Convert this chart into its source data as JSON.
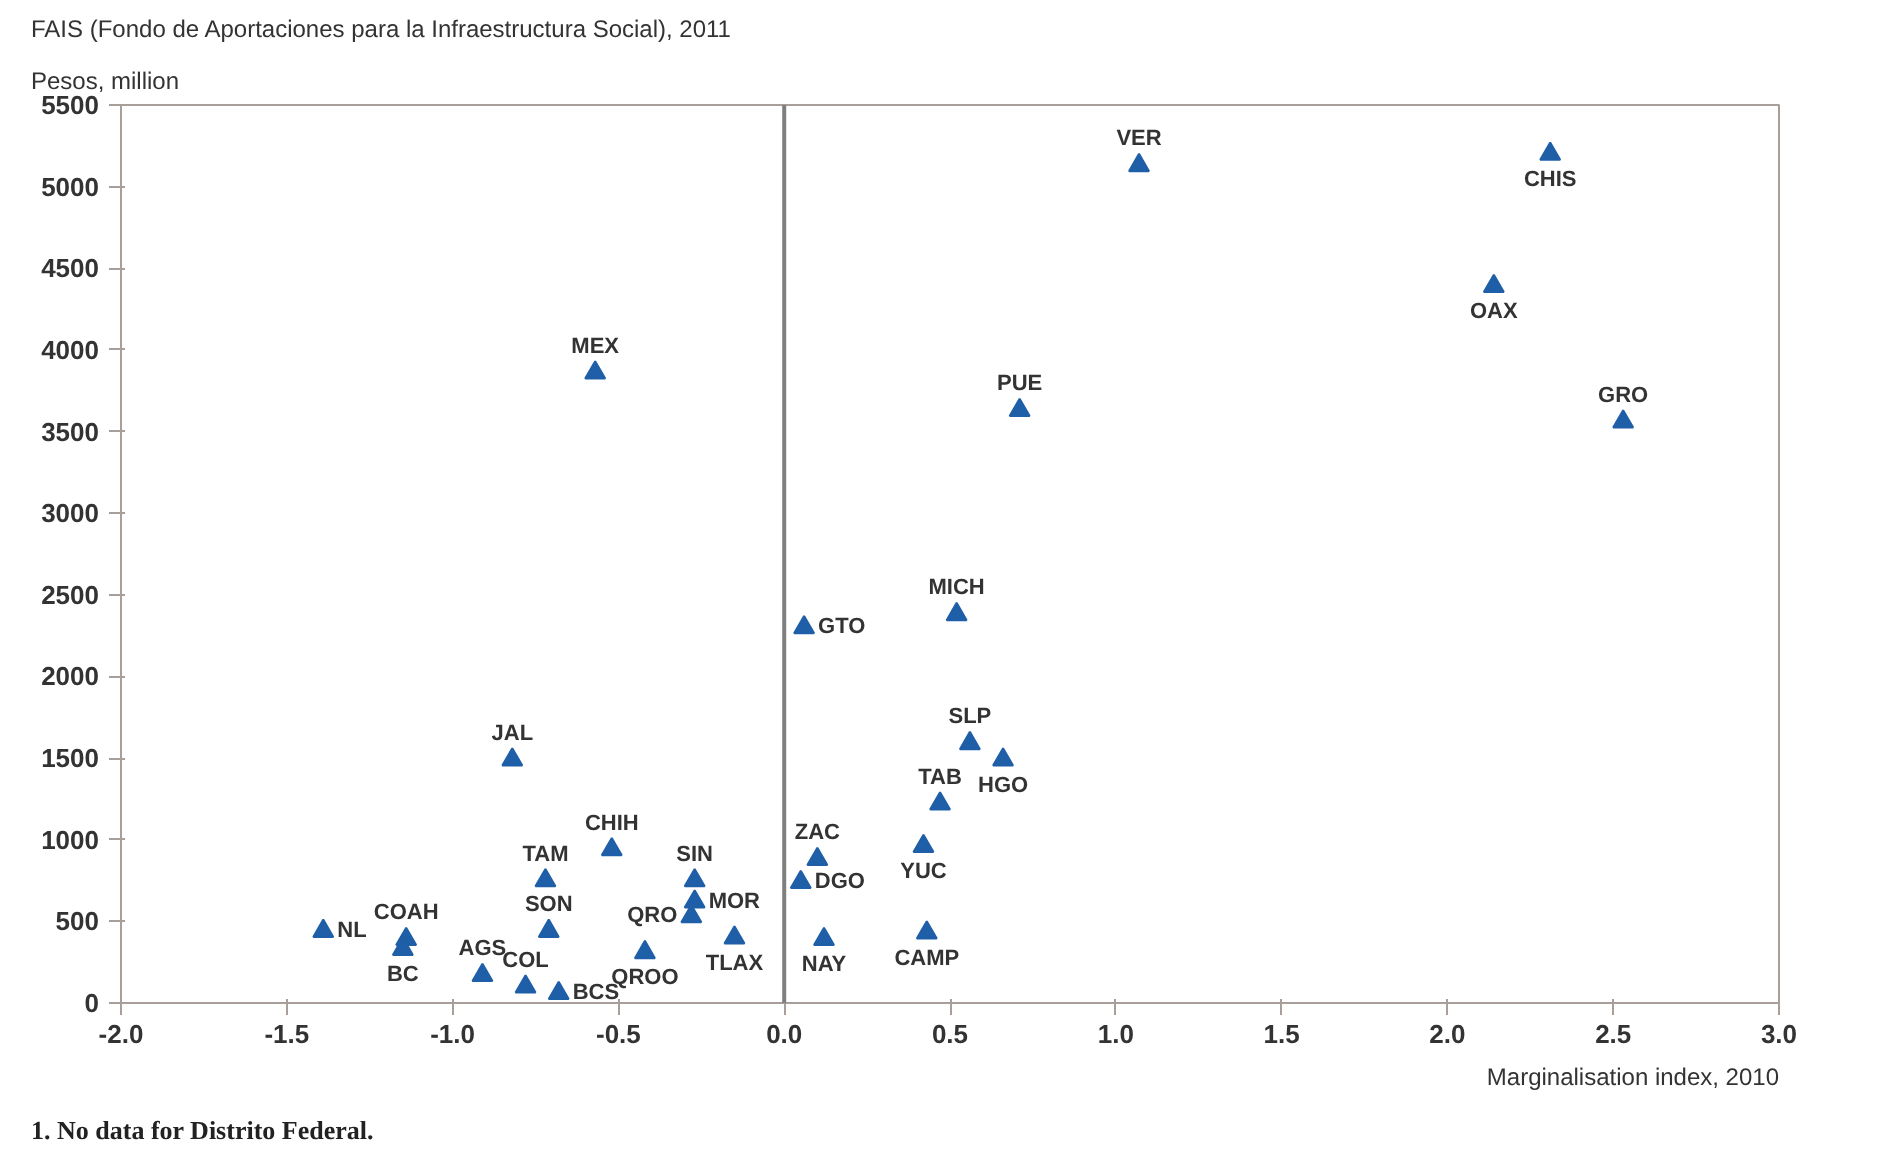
{
  "chart_data": {
    "type": "scatter",
    "title": "FAIS (Fondo de Aportaciones para la Infraestructura Social), 2011",
    "ylabel": "Pesos, million",
    "xlabel": "Marginalisation index, 2010",
    "x": [
      -1.39,
      -1.14,
      -1.15,
      -0.91,
      -0.78,
      -0.68,
      -0.82,
      -0.72,
      -0.71,
      -0.52,
      -0.42,
      -0.27,
      -0.27,
      -0.28,
      -0.15,
      0.05,
      0.1,
      0.12,
      0.06,
      0.52,
      0.56,
      0.66,
      0.47,
      0.42,
      0.43,
      1.07,
      2.31,
      2.14,
      0.71,
      2.53,
      -0.57
    ],
    "values": [
      440,
      390,
      330,
      170,
      100,
      60,
      1490,
      750,
      440,
      940,
      310,
      750,
      620,
      530,
      400,
      740,
      880,
      390,
      2300,
      2380,
      1590,
      1490,
      1220,
      960,
      430,
      5130,
      5200,
      4390,
      3630,
      3560,
      3860
    ],
    "color": "#1f5fa8",
    "marker": "triangle",
    "xlim": [
      -2.0,
      3.0
    ],
    "xticks": [
      {
        "value": -2,
        "label": "-2.0"
      },
      {
        "value": -1.5,
        "label": "-1.5"
      },
      {
        "value": -1,
        "label": "-1.0"
      },
      {
        "value": -0.5,
        "label": "-0.5"
      },
      {
        "value": 0,
        "label": "0.0"
      },
      {
        "value": 0.5,
        "label": "0.5"
      },
      {
        "value": 1,
        "label": "1.0"
      },
      {
        "value": 1.5,
        "label": "1.5"
      },
      {
        "value": 2,
        "label": "2.0"
      },
      {
        "value": 2.5,
        "label": "2.5"
      },
      {
        "value": 3,
        "label": "3.0"
      }
    ],
    "ylim": [
      0,
      5500
    ],
    "yticks": [
      0,
      500,
      1000,
      1500,
      2000,
      2500,
      3000,
      3500,
      4000,
      4500,
      5000,
      5500
    ],
    "grid": false,
    "ref_lines": [
      {
        "axis": "x",
        "value": 0,
        "color": "#7f7f7f"
      }
    ],
    "annotations": [
      {
        "text": "NL",
        "x": -1.39,
        "y": 440
      },
      {
        "text": "COAH",
        "x": -1.14,
        "y": 390
      },
      {
        "text": "BC",
        "x": -1.15,
        "y": 330
      },
      {
        "text": "AGS",
        "x": -0.91,
        "y": 170
      },
      {
        "text": "COL",
        "x": -0.78,
        "y": 100
      },
      {
        "text": "BCS",
        "x": -0.68,
        "y": 60
      },
      {
        "text": "JAL",
        "x": -0.82,
        "y": 1490
      },
      {
        "text": "TAM",
        "x": -0.72,
        "y": 750
      },
      {
        "text": "SON",
        "x": -0.71,
        "y": 440
      },
      {
        "text": "CHIH",
        "x": -0.52,
        "y": 940
      },
      {
        "text": "QROO",
        "x": -0.42,
        "y": 310
      },
      {
        "text": "SIN",
        "x": -0.27,
        "y": 750
      },
      {
        "text": "MOR",
        "x": -0.27,
        "y": 620
      },
      {
        "text": "QRO",
        "x": -0.28,
        "y": 530
      },
      {
        "text": "TLAX",
        "x": -0.15,
        "y": 400
      },
      {
        "text": "DGO",
        "x": 0.05,
        "y": 740
      },
      {
        "text": "ZAC",
        "x": 0.1,
        "y": 880
      },
      {
        "text": "NAY",
        "x": 0.12,
        "y": 390
      },
      {
        "text": "GTO",
        "x": 0.06,
        "y": 2300
      },
      {
        "text": "MICH",
        "x": 0.52,
        "y": 2380
      },
      {
        "text": "SLP",
        "x": 0.56,
        "y": 1590
      },
      {
        "text": "HGO",
        "x": 0.66,
        "y": 1490
      },
      {
        "text": "TAB",
        "x": 0.47,
        "y": 1220
      },
      {
        "text": "YUC",
        "x": 0.42,
        "y": 960
      },
      {
        "text": "CAMP",
        "x": 0.43,
        "y": 430
      },
      {
        "text": "VER",
        "x": 1.07,
        "y": 5130
      },
      {
        "text": "CHIS",
        "x": 2.31,
        "y": 5200
      },
      {
        "text": "OAX",
        "x": 2.14,
        "y": 4390
      },
      {
        "text": "PUE",
        "x": 0.71,
        "y": 3630
      },
      {
        "text": "GRO",
        "x": 2.53,
        "y": 3560
      },
      {
        "text": "MEX",
        "x": -0.57,
        "y": 3860
      },
      "1. No data for Distrito Federal."
    ]
  }
}
